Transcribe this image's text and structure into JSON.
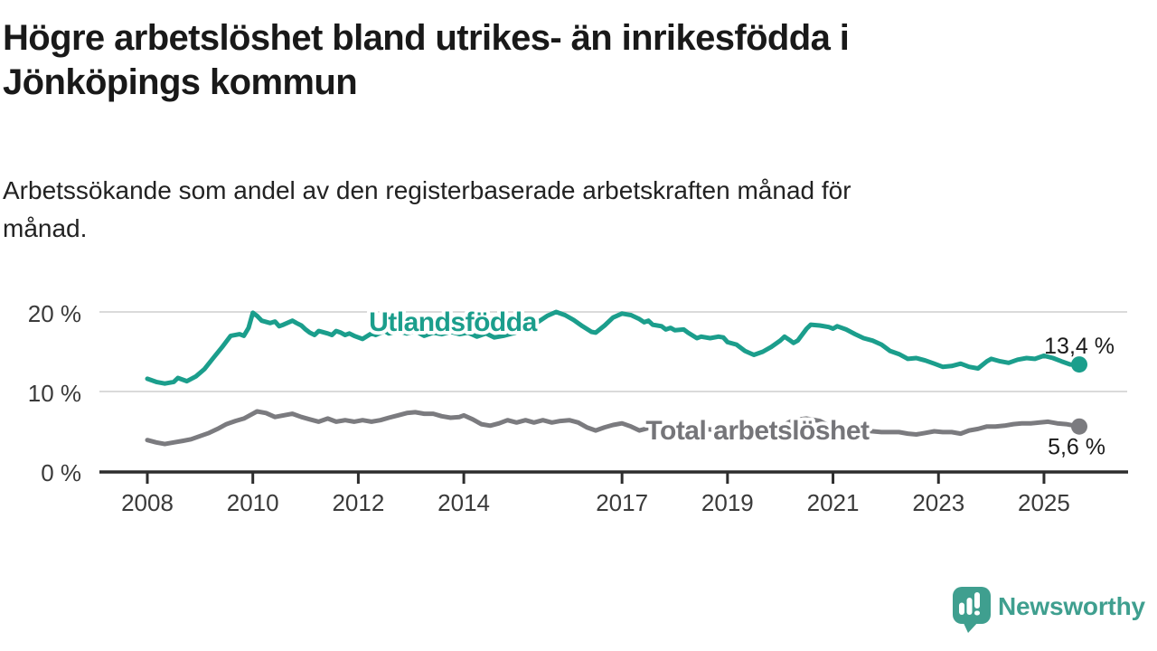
{
  "header": {
    "title_lines": [
      "Högre arbetslöshet bland utrikes- än inrikesfödda i",
      "Jönköpings kommun"
    ],
    "subtitle_lines": [
      "Arbetssökande som andel av den registerbaserade arbetskraften månad för",
      "månad."
    ]
  },
  "chart_data": {
    "type": "line",
    "title": "Högre arbetslöshet bland utrikes- än inrikesfödda i Jönköpings kommun",
    "subtitle": "Arbetssökande som andel av den registerbaserade arbetskraften månad för månad.",
    "xlabel": "",
    "ylabel": "",
    "unit": "%",
    "grid": "horizontal",
    "legend_position": "inline-labels",
    "xlim": [
      2007.1,
      2026.6
    ],
    "ylim": [
      0,
      21.5
    ],
    "x_axis": {
      "ticks": [
        2008,
        2010,
        2012,
        2014,
        2017,
        2019,
        2021,
        2023,
        2025
      ],
      "labels": [
        "2008",
        "2010",
        "2012",
        "2014",
        "2017",
        "2019",
        "2021",
        "2023",
        "2025"
      ]
    },
    "y_axis": {
      "ticks": [
        0,
        10,
        20
      ],
      "labels": [
        "0 %",
        "10 %",
        "20 %"
      ]
    },
    "colors": {
      "grid": "#dadada",
      "axis": "#2d2d2d",
      "tick_text": "#3a3a3a",
      "annotation_text": "#1a1a1a"
    },
    "series": [
      {
        "name": "Utlandsfödda",
        "color": "#1b9e8c",
        "label_color": "#1b9e8c",
        "label_anchor": [
          2012.2,
          17.6
        ],
        "end_label": "13,4 %",
        "end_value": 13.4,
        "points": [
          [
            2008.0,
            11.6
          ],
          [
            2008.17,
            11.2
          ],
          [
            2008.33,
            11.0
          ],
          [
            2008.5,
            11.2
          ],
          [
            2008.58,
            11.7
          ],
          [
            2008.75,
            11.3
          ],
          [
            2008.92,
            11.9
          ],
          [
            2009.08,
            12.8
          ],
          [
            2009.25,
            14.2
          ],
          [
            2009.42,
            15.6
          ],
          [
            2009.58,
            17.0
          ],
          [
            2009.75,
            17.2
          ],
          [
            2009.83,
            17.0
          ],
          [
            2009.92,
            18.0
          ],
          [
            2010.0,
            19.9
          ],
          [
            2010.08,
            19.5
          ],
          [
            2010.17,
            18.9
          ],
          [
            2010.33,
            18.6
          ],
          [
            2010.42,
            18.8
          ],
          [
            2010.5,
            18.2
          ],
          [
            2010.58,
            18.4
          ],
          [
            2010.75,
            18.9
          ],
          [
            2010.83,
            18.6
          ],
          [
            2010.92,
            18.3
          ],
          [
            2011.0,
            17.8
          ],
          [
            2011.08,
            17.4
          ],
          [
            2011.17,
            17.1
          ],
          [
            2011.25,
            17.6
          ],
          [
            2011.42,
            17.3
          ],
          [
            2011.5,
            17.1
          ],
          [
            2011.58,
            17.6
          ],
          [
            2011.67,
            17.4
          ],
          [
            2011.75,
            17.1
          ],
          [
            2011.83,
            17.3
          ],
          [
            2011.92,
            17.0
          ],
          [
            2012.0,
            16.8
          ],
          [
            2012.08,
            16.6
          ],
          [
            2012.25,
            17.3
          ],
          [
            2012.33,
            17.1
          ],
          [
            2012.5,
            17.6
          ],
          [
            2012.58,
            17.3
          ],
          [
            2012.75,
            17.6
          ],
          [
            2012.92,
            17.3
          ],
          [
            2013.08,
            17.6
          ],
          [
            2013.25,
            17.0
          ],
          [
            2013.42,
            17.4
          ],
          [
            2013.58,
            17.2
          ],
          [
            2013.75,
            17.5
          ],
          [
            2013.92,
            17.2
          ],
          [
            2014.08,
            17.4
          ],
          [
            2014.25,
            16.9
          ],
          [
            2014.42,
            17.3
          ],
          [
            2014.58,
            16.8
          ],
          [
            2014.75,
            17.0
          ],
          [
            2014.92,
            17.3
          ],
          [
            2015.08,
            17.6
          ],
          [
            2015.25,
            18.1
          ],
          [
            2015.42,
            18.8
          ],
          [
            2015.58,
            19.5
          ],
          [
            2015.75,
            20.0
          ],
          [
            2015.92,
            19.6
          ],
          [
            2016.08,
            19.0
          ],
          [
            2016.25,
            18.2
          ],
          [
            2016.42,
            17.5
          ],
          [
            2016.5,
            17.4
          ],
          [
            2016.67,
            18.3
          ],
          [
            2016.83,
            19.3
          ],
          [
            2017.0,
            19.8
          ],
          [
            2017.17,
            19.6
          ],
          [
            2017.33,
            19.1
          ],
          [
            2017.42,
            18.7
          ],
          [
            2017.5,
            18.9
          ],
          [
            2017.58,
            18.4
          ],
          [
            2017.75,
            18.2
          ],
          [
            2017.83,
            17.8
          ],
          [
            2017.92,
            18.0
          ],
          [
            2018.0,
            17.7
          ],
          [
            2018.17,
            17.8
          ],
          [
            2018.25,
            17.4
          ],
          [
            2018.42,
            16.7
          ],
          [
            2018.5,
            16.9
          ],
          [
            2018.67,
            16.7
          ],
          [
            2018.83,
            16.9
          ],
          [
            2018.92,
            16.8
          ],
          [
            2019.0,
            16.2
          ],
          [
            2019.17,
            15.9
          ],
          [
            2019.33,
            15.1
          ],
          [
            2019.5,
            14.6
          ],
          [
            2019.67,
            15.0
          ],
          [
            2019.83,
            15.6
          ],
          [
            2020.0,
            16.4
          ],
          [
            2020.08,
            16.9
          ],
          [
            2020.17,
            16.5
          ],
          [
            2020.25,
            16.1
          ],
          [
            2020.33,
            16.4
          ],
          [
            2020.5,
            17.9
          ],
          [
            2020.58,
            18.4
          ],
          [
            2020.75,
            18.3
          ],
          [
            2020.92,
            18.1
          ],
          [
            2021.0,
            17.9
          ],
          [
            2021.08,
            18.2
          ],
          [
            2021.25,
            17.8
          ],
          [
            2021.42,
            17.2
          ],
          [
            2021.58,
            16.7
          ],
          [
            2021.75,
            16.4
          ],
          [
            2021.92,
            15.9
          ],
          [
            2022.08,
            15.1
          ],
          [
            2022.25,
            14.7
          ],
          [
            2022.42,
            14.1
          ],
          [
            2022.58,
            14.2
          ],
          [
            2022.75,
            13.9
          ],
          [
            2022.92,
            13.5
          ],
          [
            2023.08,
            13.1
          ],
          [
            2023.25,
            13.2
          ],
          [
            2023.42,
            13.5
          ],
          [
            2023.58,
            13.1
          ],
          [
            2023.75,
            12.9
          ],
          [
            2023.92,
            13.8
          ],
          [
            2024.0,
            14.1
          ],
          [
            2024.17,
            13.8
          ],
          [
            2024.33,
            13.6
          ],
          [
            2024.5,
            14.0
          ],
          [
            2024.67,
            14.2
          ],
          [
            2024.83,
            14.1
          ],
          [
            2025.0,
            14.5
          ],
          [
            2025.17,
            14.2
          ],
          [
            2025.33,
            13.8
          ],
          [
            2025.5,
            13.4
          ],
          [
            2025.67,
            13.4
          ]
        ]
      },
      {
        "name": "Total arbetslöshet",
        "color": "#7b7b7f",
        "label_color": "#757579",
        "label_anchor": [
          2017.45,
          4.0
        ],
        "end_label": "5,6 %",
        "end_value": 5.6,
        "points": [
          [
            2008.0,
            3.9
          ],
          [
            2008.17,
            3.6
          ],
          [
            2008.33,
            3.4
          ],
          [
            2008.5,
            3.6
          ],
          [
            2008.67,
            3.8
          ],
          [
            2008.83,
            4.0
          ],
          [
            2009.0,
            4.4
          ],
          [
            2009.17,
            4.8
          ],
          [
            2009.33,
            5.3
          ],
          [
            2009.5,
            5.9
          ],
          [
            2009.67,
            6.3
          ],
          [
            2009.83,
            6.6
          ],
          [
            2010.0,
            7.2
          ],
          [
            2010.08,
            7.5
          ],
          [
            2010.25,
            7.3
          ],
          [
            2010.42,
            6.8
          ],
          [
            2010.58,
            7.0
          ],
          [
            2010.75,
            7.2
          ],
          [
            2010.92,
            6.8
          ],
          [
            2011.08,
            6.5
          ],
          [
            2011.25,
            6.2
          ],
          [
            2011.42,
            6.6
          ],
          [
            2011.58,
            6.2
          ],
          [
            2011.75,
            6.4
          ],
          [
            2011.92,
            6.2
          ],
          [
            2012.08,
            6.4
          ],
          [
            2012.25,
            6.2
          ],
          [
            2012.42,
            6.4
          ],
          [
            2012.58,
            6.7
          ],
          [
            2012.75,
            7.0
          ],
          [
            2012.92,
            7.3
          ],
          [
            2013.08,
            7.4
          ],
          [
            2013.25,
            7.2
          ],
          [
            2013.42,
            7.2
          ],
          [
            2013.58,
            6.9
          ],
          [
            2013.75,
            6.7
          ],
          [
            2013.92,
            6.8
          ],
          [
            2014.0,
            7.0
          ],
          [
            2014.17,
            6.5
          ],
          [
            2014.33,
            5.9
          ],
          [
            2014.5,
            5.7
          ],
          [
            2014.67,
            6.0
          ],
          [
            2014.83,
            6.4
          ],
          [
            2015.0,
            6.1
          ],
          [
            2015.17,
            6.4
          ],
          [
            2015.33,
            6.1
          ],
          [
            2015.5,
            6.4
          ],
          [
            2015.67,
            6.1
          ],
          [
            2015.83,
            6.3
          ],
          [
            2016.0,
            6.4
          ],
          [
            2016.17,
            6.1
          ],
          [
            2016.33,
            5.5
          ],
          [
            2016.5,
            5.1
          ],
          [
            2016.67,
            5.5
          ],
          [
            2016.83,
            5.8
          ],
          [
            2017.0,
            6.0
          ],
          [
            2017.17,
            5.6
          ],
          [
            2017.33,
            5.1
          ],
          [
            2017.5,
            5.4
          ],
          [
            2017.75,
            5.5
          ],
          [
            2018.0,
            5.4
          ],
          [
            2018.25,
            5.2
          ],
          [
            2018.5,
            5.3
          ],
          [
            2018.75,
            5.2
          ],
          [
            2019.0,
            5.2
          ],
          [
            2019.25,
            5.1
          ],
          [
            2019.5,
            5.2
          ],
          [
            2019.75,
            5.3
          ],
          [
            2020.0,
            5.6
          ],
          [
            2020.25,
            6.4
          ],
          [
            2020.5,
            6.6
          ],
          [
            2020.75,
            6.3
          ],
          [
            2020.92,
            5.7
          ],
          [
            2021.08,
            5.3
          ],
          [
            2021.25,
            5.1
          ],
          [
            2021.42,
            5.2
          ],
          [
            2021.58,
            5.1
          ],
          [
            2021.75,
            5.0
          ],
          [
            2021.92,
            4.9
          ],
          [
            2022.08,
            4.9
          ],
          [
            2022.25,
            4.9
          ],
          [
            2022.42,
            4.7
          ],
          [
            2022.58,
            4.6
          ],
          [
            2022.75,
            4.8
          ],
          [
            2022.92,
            5.0
          ],
          [
            2023.08,
            4.9
          ],
          [
            2023.25,
            4.9
          ],
          [
            2023.42,
            4.7
          ],
          [
            2023.58,
            5.1
          ],
          [
            2023.75,
            5.3
          ],
          [
            2023.92,
            5.6
          ],
          [
            2024.08,
            5.6
          ],
          [
            2024.25,
            5.7
          ],
          [
            2024.42,
            5.9
          ],
          [
            2024.58,
            6.0
          ],
          [
            2024.75,
            6.0
          ],
          [
            2024.92,
            6.1
          ],
          [
            2025.08,
            6.2
          ],
          [
            2025.25,
            6.0
          ],
          [
            2025.42,
            5.9
          ],
          [
            2025.58,
            5.7
          ],
          [
            2025.67,
            5.6
          ]
        ]
      }
    ]
  },
  "brand": {
    "name": "Newsworthy",
    "color": "#3f9f8f",
    "icon": "newsworthy-bubble-chart-icon"
  }
}
